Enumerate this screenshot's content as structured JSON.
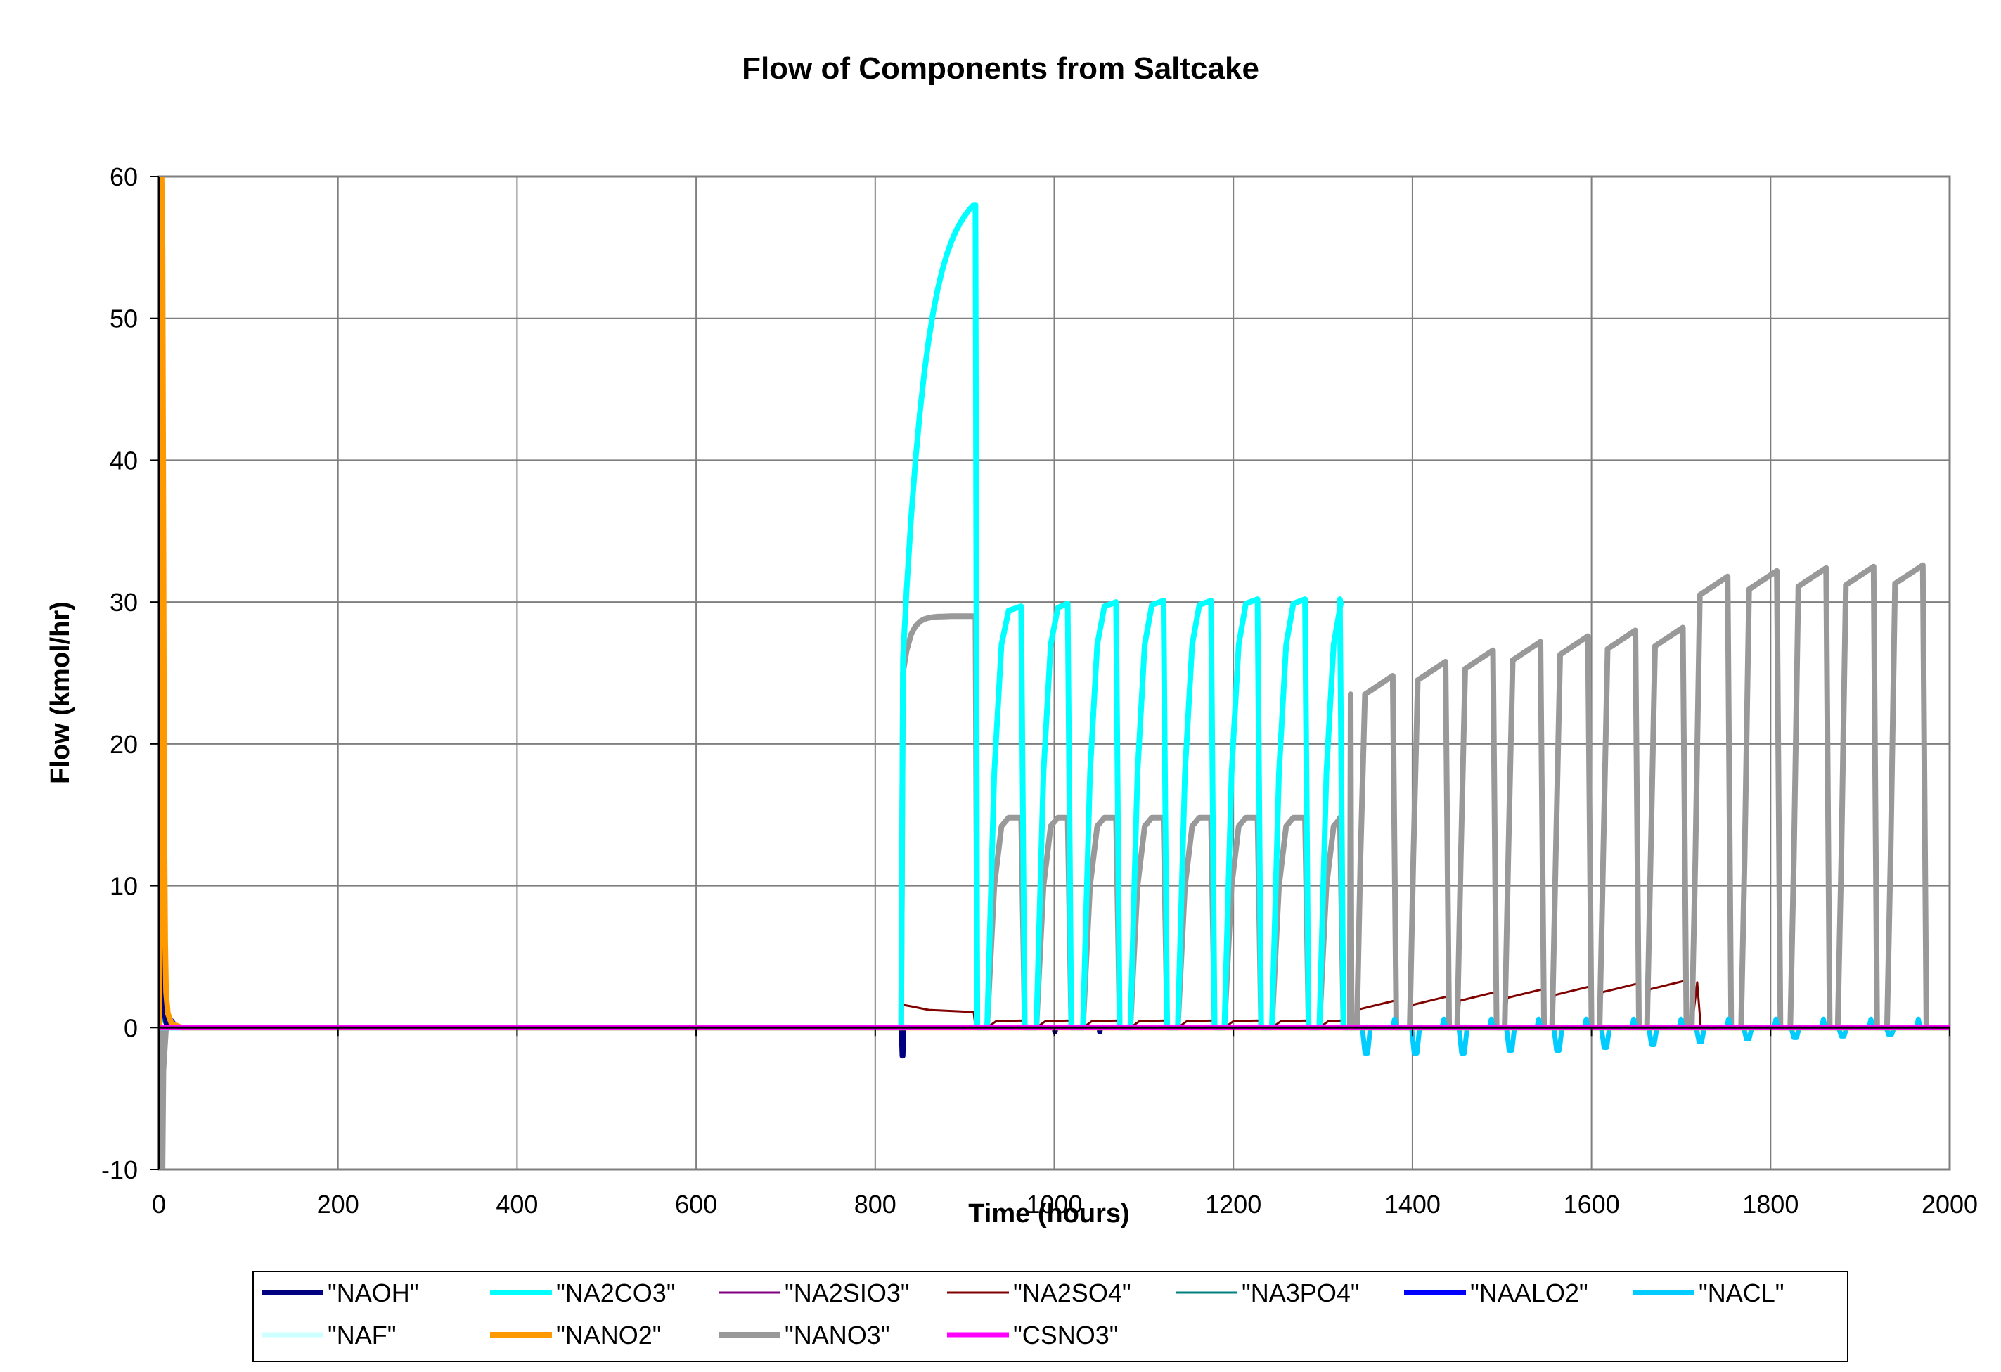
{
  "chart_data": {
    "type": "line",
    "title": "Flow of Components from Saltcake",
    "xlabel": "Time (hours)",
    "ylabel": "Flow (kmol/hr)",
    "xlim": [
      0,
      2000
    ],
    "ylim": [
      -10,
      60
    ],
    "xticks": [
      0,
      200,
      400,
      600,
      800,
      1000,
      1200,
      1400,
      1600,
      1800,
      2000
    ],
    "yticks": [
      -10,
      0,
      10,
      20,
      30,
      40,
      50,
      60
    ],
    "grid": true,
    "legend_position": "bottom",
    "series": [
      {
        "name": "\"NAOH\"",
        "color": "#000080",
        "width": 7,
        "x": [
          0,
          1,
          2,
          3,
          4,
          5,
          6,
          8,
          15,
          40,
          829,
          830,
          831,
          832,
          835,
          1000,
          1000.5,
          1001,
          1002,
          1050,
          1050.5,
          1051,
          1052,
          2000
        ],
        "y": [
          0,
          14,
          24,
          12,
          5,
          3,
          1,
          0.3,
          0,
          0,
          0,
          -2,
          -2,
          0,
          0,
          0,
          -0.3,
          -0.3,
          0,
          0,
          -0.3,
          -0.3,
          0,
          0
        ]
      },
      {
        "name": "\"NA2CO3\"",
        "color": "#00FFFF",
        "width": 8,
        "x": [],
        "y": []
      },
      {
        "name": "\"NA2SIO3\"",
        "color": "#800080",
        "width": 3,
        "x": [
          0,
          1,
          2,
          3,
          4,
          6,
          10,
          2000
        ],
        "y": [
          0,
          60,
          60,
          31,
          14,
          4,
          0,
          0
        ]
      },
      {
        "name": "\"NA2SO4\"",
        "color": "#800000",
        "width": 3,
        "x": [],
        "y": []
      },
      {
        "name": "\"NA3PO4\"",
        "color": "#008080",
        "width": 3,
        "x": [
          0,
          1,
          3,
          5,
          10,
          2000
        ],
        "y": [
          0,
          7,
          3,
          1,
          0,
          0
        ]
      },
      {
        "name": "\"NAALO2\"",
        "color": "#0000FF",
        "width": 7,
        "x": [
          0,
          1,
          2,
          4,
          8,
          20,
          2000
        ],
        "y": [
          0,
          12,
          10,
          4,
          1,
          0,
          0
        ]
      },
      {
        "name": "\"NACL\"",
        "color": "#00CCFF",
        "width": 7,
        "x": [],
        "y": []
      },
      {
        "name": "\"NAF\"",
        "color": "#CCFFFF",
        "width": 7,
        "x": [
          0,
          2000
        ],
        "y": [
          0,
          0
        ]
      },
      {
        "name": "\"NANO2\"",
        "color": "#FF9900",
        "width": 8,
        "x": [
          0,
          1,
          2,
          3,
          4,
          5,
          6,
          7,
          8,
          10,
          14,
          25,
          2000
        ],
        "y": [
          0,
          60,
          60,
          60,
          55,
          35,
          15,
          6,
          2.5,
          1,
          0.3,
          0,
          0
        ]
      },
      {
        "name": "\"NANO3\"",
        "color": "#999999",
        "width": 8,
        "x": [],
        "y": []
      },
      {
        "name": "\"CSNO3\"",
        "color": "#FF00FF",
        "width": 7,
        "x": [
          0,
          2000
        ],
        "y": [
          0,
          0
        ]
      }
    ]
  }
}
